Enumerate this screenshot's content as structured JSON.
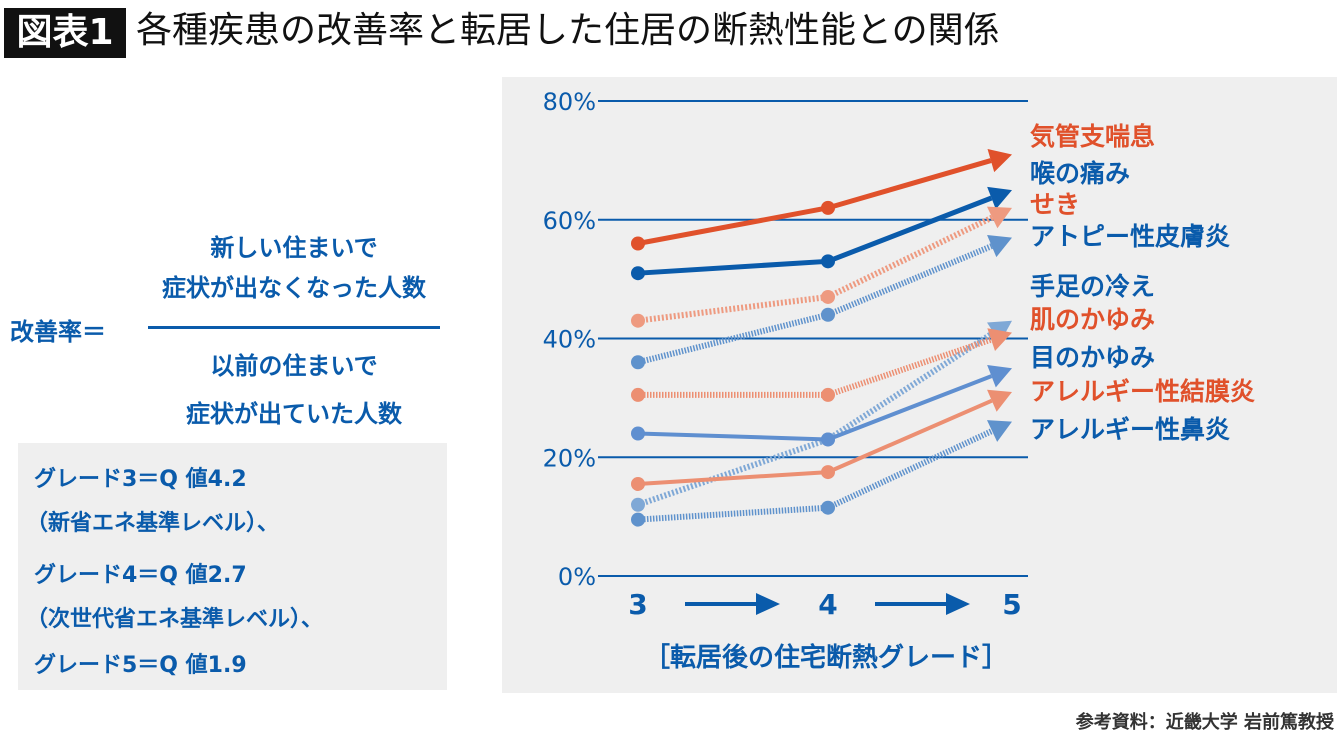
{
  "header": {
    "tag": "図表1",
    "title": "各種疾患の改善率と転居した住居の断熱性能との関係"
  },
  "formula": {
    "label": "改善率＝",
    "numerator": [
      "新しい住まいで",
      "症状が出なくなった人数"
    ],
    "denominator": [
      "以前の住まいで",
      "症状が出ていた人数"
    ]
  },
  "grades": [
    "グレード3＝Q 値4.2",
    "（新省エネ基準レベル）、",
    "グレード4＝Q 値2.7",
    "（次世代省エネ基準レベル）、",
    "グレード5＝Q 値1.9"
  ],
  "source": "参考資料：近畿大学 岩前篤教授",
  "chart_data": {
    "type": "line",
    "title": "",
    "xlabel": "［転居後の住宅断熱グレード］",
    "ylabel": "",
    "categories": [
      "3",
      "4",
      "5"
    ],
    "ylim": [
      0,
      80
    ],
    "yticks": [
      "0%",
      "20%",
      "40%",
      "60%",
      "80%"
    ],
    "grid": true,
    "legend": "right (labels at line ends)",
    "series": [
      {
        "name": "気管支喘息",
        "values": [
          56,
          62,
          71
        ],
        "color": "#e0512b",
        "style": "solid"
      },
      {
        "name": "喉の痛み",
        "values": [
          51,
          53,
          65
        ],
        "color": "#0a5bab",
        "style": "solid"
      },
      {
        "name": "せき",
        "values": [
          43,
          47,
          62
        ],
        "color": "#ee9a80",
        "style": "dotted"
      },
      {
        "name": "アトピー性皮膚炎",
        "values": [
          36,
          44,
          57
        ],
        "color": "#5f92cc",
        "style": "hatched"
      },
      {
        "name": "手足の冷え",
        "values": [
          12,
          23,
          43
        ],
        "color": "#7fa8d6",
        "style": "dotted"
      },
      {
        "name": "肌のかゆみ",
        "values": [
          30.5,
          30.5,
          41
        ],
        "color": "#ec8f72",
        "style": "hatched"
      },
      {
        "name": "目のかゆみ",
        "values": [
          24,
          23,
          35
        ],
        "color": "#5f8fd0",
        "style": "solid"
      },
      {
        "name": "アレルギー性結膜炎",
        "values": [
          15.5,
          17.5,
          31
        ],
        "color": "#ec8f72",
        "style": "solid"
      },
      {
        "name": "アレルギー性鼻炎",
        "values": [
          9.5,
          11.5,
          26
        ],
        "color": "#5f92cc",
        "style": "hatched"
      }
    ],
    "label_colors": [
      "#e0512b",
      "#0a5bab",
      "#e0512b",
      "#0a5bab",
      "#0a5bab",
      "#e0512b",
      "#0a5bab",
      "#e0512b",
      "#0a5bab"
    ]
  }
}
